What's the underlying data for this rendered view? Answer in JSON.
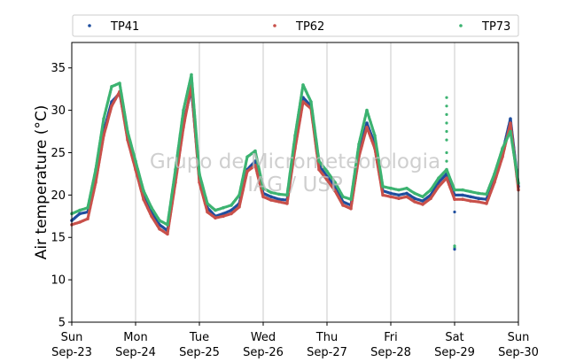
{
  "chart_data": {
    "type": "scatter",
    "ylabel": "Air temperature (°C)",
    "ylim": [
      5,
      38
    ],
    "yticks": [
      5,
      10,
      15,
      20,
      25,
      30,
      35
    ],
    "xlim": [
      "2018-09-23 00:00",
      "2018-09-30 00:00"
    ],
    "xticks": [
      {
        "day": "Sun",
        "date": "Sep-23"
      },
      {
        "day": "Mon",
        "date": "Sep-24"
      },
      {
        "day": "Tue",
        "date": "Sep-25"
      },
      {
        "day": "Wed",
        "date": "Sep-26"
      },
      {
        "day": "Thu",
        "date": "Sep-27"
      },
      {
        "day": "Fri",
        "date": "Sep-28"
      },
      {
        "day": "Sat",
        "date": "Sep-29"
      },
      {
        "day": "Sun",
        "date": "Sep-30"
      }
    ],
    "grid": "vertical",
    "legend": "top",
    "watermark": [
      "Grupo de Micrometeorologia",
      "IAG / USP"
    ],
    "series": [
      {
        "name": "TP41",
        "color": "#1f4e9e",
        "x": [
          "2018-09-23 00:00",
          "2018-09-23 03:00",
          "2018-09-23 06:00",
          "2018-09-23 09:00",
          "2018-09-23 12:00",
          "2018-09-23 15:00",
          "2018-09-23 18:00",
          "2018-09-23 21:00",
          "2018-09-24 00:00",
          "2018-09-24 03:00",
          "2018-09-24 06:00",
          "2018-09-24 09:00",
          "2018-09-24 12:00",
          "2018-09-24 15:00",
          "2018-09-24 18:00",
          "2018-09-24 21:00",
          "2018-09-25 00:00",
          "2018-09-25 03:00",
          "2018-09-25 06:00",
          "2018-09-25 09:00",
          "2018-09-25 12:00",
          "2018-09-25 15:00",
          "2018-09-25 18:00",
          "2018-09-25 21:00",
          "2018-09-26 00:00",
          "2018-09-26 03:00",
          "2018-09-26 06:00",
          "2018-09-26 09:00",
          "2018-09-26 12:00",
          "2018-09-26 15:00",
          "2018-09-26 18:00",
          "2018-09-26 21:00",
          "2018-09-27 00:00",
          "2018-09-27 03:00",
          "2018-09-27 06:00",
          "2018-09-27 09:00",
          "2018-09-27 12:00",
          "2018-09-27 15:00",
          "2018-09-27 18:00",
          "2018-09-27 21:00",
          "2018-09-28 00:00",
          "2018-09-28 03:00",
          "2018-09-28 06:00",
          "2018-09-28 09:00",
          "2018-09-28 12:00",
          "2018-09-28 15:00",
          "2018-09-28 18:00",
          "2018-09-28 21:00",
          "2018-09-29 00:00",
          "2018-09-29 03:00",
          "2018-09-29 06:00",
          "2018-09-29 09:00",
          "2018-09-29 12:00",
          "2018-09-29 15:00",
          "2018-09-29 18:00",
          "2018-09-29 21:00",
          "2018-09-30 00:00"
        ],
        "y": [
          17.0,
          17.8,
          18.0,
          22.0,
          27.5,
          31.0,
          32.0,
          27.0,
          23.5,
          20.0,
          18.0,
          16.5,
          15.8,
          22.0,
          28.5,
          32.5,
          22.0,
          18.5,
          17.5,
          17.8,
          18.2,
          19.0,
          23.0,
          24.0,
          20.2,
          19.8,
          19.5,
          19.4,
          26.0,
          31.5,
          30.5,
          23.5,
          22.2,
          21.0,
          19.2,
          18.8,
          25.0,
          28.5,
          26.0,
          20.5,
          20.2,
          20.0,
          20.2,
          19.6,
          19.3,
          20.0,
          21.5,
          22.5,
          20.0,
          20.0,
          19.8,
          19.6,
          19.5,
          22.0,
          25.0,
          29.0,
          21.0
        ]
      },
      {
        "name": "TP62",
        "color": "#c8504a",
        "x": [
          "2018-09-23 00:00",
          "2018-09-23 03:00",
          "2018-09-23 06:00",
          "2018-09-23 09:00",
          "2018-09-23 12:00",
          "2018-09-23 15:00",
          "2018-09-23 18:00",
          "2018-09-23 21:00",
          "2018-09-24 00:00",
          "2018-09-24 03:00",
          "2018-09-24 06:00",
          "2018-09-24 09:00",
          "2018-09-24 12:00",
          "2018-09-24 15:00",
          "2018-09-24 18:00",
          "2018-09-24 21:00",
          "2018-09-25 00:00",
          "2018-09-25 03:00",
          "2018-09-25 06:00",
          "2018-09-25 09:00",
          "2018-09-25 12:00",
          "2018-09-25 15:00",
          "2018-09-25 18:00",
          "2018-09-25 21:00",
          "2018-09-26 00:00",
          "2018-09-26 03:00",
          "2018-09-26 06:00",
          "2018-09-26 09:00",
          "2018-09-26 12:00",
          "2018-09-26 15:00",
          "2018-09-26 18:00",
          "2018-09-26 21:00",
          "2018-09-27 00:00",
          "2018-09-27 03:00",
          "2018-09-27 06:00",
          "2018-09-27 09:00",
          "2018-09-27 12:00",
          "2018-09-27 15:00",
          "2018-09-27 18:00",
          "2018-09-27 21:00",
          "2018-09-28 00:00",
          "2018-09-28 03:00",
          "2018-09-28 06:00",
          "2018-09-28 09:00",
          "2018-09-28 12:00",
          "2018-09-28 15:00",
          "2018-09-28 18:00",
          "2018-09-28 21:00",
          "2018-09-29 00:00",
          "2018-09-29 03:00",
          "2018-09-29 06:00",
          "2018-09-29 09:00",
          "2018-09-29 12:00",
          "2018-09-29 15:00",
          "2018-09-29 18:00",
          "2018-09-29 21:00",
          "2018-09-30 00:00"
        ],
        "y": [
          16.5,
          16.8,
          17.2,
          21.5,
          27.0,
          30.5,
          32.2,
          26.5,
          23.0,
          19.5,
          17.5,
          16.0,
          15.4,
          21.5,
          28.0,
          33.0,
          21.5,
          18.0,
          17.3,
          17.5,
          17.8,
          18.6,
          22.8,
          23.5,
          19.8,
          19.4,
          19.2,
          19.0,
          25.5,
          31.0,
          30.2,
          23.0,
          21.8,
          20.5,
          18.8,
          18.4,
          24.5,
          28.0,
          25.5,
          20.0,
          19.8,
          19.6,
          19.8,
          19.2,
          18.9,
          19.6,
          21.0,
          22.0,
          19.5,
          19.5,
          19.3,
          19.2,
          19.0,
          21.5,
          24.5,
          28.5,
          20.6
        ]
      },
      {
        "name": "TP73",
        "color": "#3cb371",
        "x": [
          "2018-09-23 00:00",
          "2018-09-23 03:00",
          "2018-09-23 06:00",
          "2018-09-23 09:00",
          "2018-09-23 12:00",
          "2018-09-23 15:00",
          "2018-09-23 18:00",
          "2018-09-23 21:00",
          "2018-09-24 00:00",
          "2018-09-24 03:00",
          "2018-09-24 06:00",
          "2018-09-24 09:00",
          "2018-09-24 12:00",
          "2018-09-24 15:00",
          "2018-09-24 18:00",
          "2018-09-24 21:00",
          "2018-09-25 00:00",
          "2018-09-25 03:00",
          "2018-09-25 06:00",
          "2018-09-25 09:00",
          "2018-09-25 12:00",
          "2018-09-25 15:00",
          "2018-09-25 18:00",
          "2018-09-25 21:00",
          "2018-09-26 00:00",
          "2018-09-26 03:00",
          "2018-09-26 06:00",
          "2018-09-26 09:00",
          "2018-09-26 12:00",
          "2018-09-26 15:00",
          "2018-09-26 18:00",
          "2018-09-26 21:00",
          "2018-09-27 00:00",
          "2018-09-27 03:00",
          "2018-09-27 06:00",
          "2018-09-27 09:00",
          "2018-09-27 12:00",
          "2018-09-27 15:00",
          "2018-09-27 18:00",
          "2018-09-27 21:00",
          "2018-09-28 00:00",
          "2018-09-28 03:00",
          "2018-09-28 06:00",
          "2018-09-28 09:00",
          "2018-09-28 12:00",
          "2018-09-28 15:00",
          "2018-09-28 18:00",
          "2018-09-28 21:00",
          "2018-09-29 00:00",
          "2018-09-29 03:00",
          "2018-09-29 06:00",
          "2018-09-29 09:00",
          "2018-09-29 12:00",
          "2018-09-29 15:00",
          "2018-09-29 18:00",
          "2018-09-29 21:00",
          "2018-09-30 00:00"
        ],
        "y": [
          17.8,
          18.2,
          18.5,
          23.0,
          29.0,
          32.8,
          33.2,
          27.5,
          24.0,
          20.5,
          18.5,
          17.0,
          16.5,
          23.0,
          30.0,
          34.2,
          22.5,
          19.0,
          18.2,
          18.5,
          18.8,
          20.0,
          24.5,
          25.2,
          20.8,
          20.3,
          20.1,
          20.0,
          27.0,
          33.0,
          31.0,
          24.0,
          22.8,
          21.5,
          19.8,
          19.5,
          26.0,
          30.0,
          27.0,
          21.0,
          20.8,
          20.6,
          20.8,
          20.2,
          19.8,
          20.6,
          22.0,
          23.0,
          20.6,
          20.6,
          20.4,
          20.2,
          20.1,
          22.5,
          25.5,
          27.5,
          21.4
        ]
      }
    ],
    "outliers": [
      {
        "series": "TP73",
        "x": "2018-09-28 21:00",
        "y": [
          31.5,
          30.5,
          29.5,
          28.5,
          27.5,
          26.5,
          25.0,
          24.0
        ]
      },
      {
        "series": "TP73",
        "x": "2018-09-29 00:00",
        "y": [
          13.8,
          14.0
        ]
      },
      {
        "series": "TP41",
        "x": "2018-09-29 00:00",
        "y": [
          18.0,
          13.6
        ]
      }
    ]
  }
}
